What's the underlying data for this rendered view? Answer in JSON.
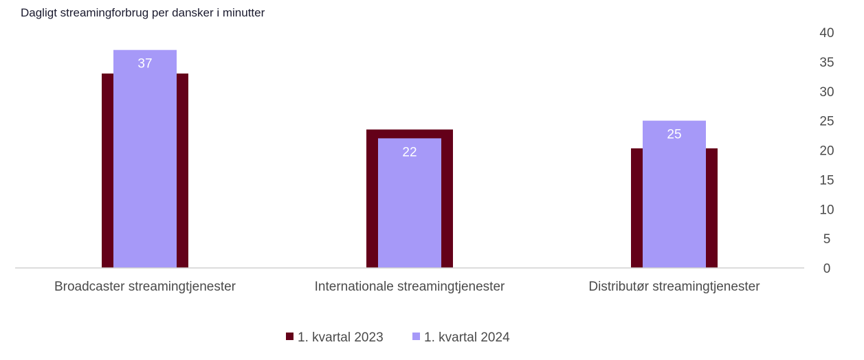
{
  "chart_data": {
    "type": "bar",
    "title": "Dagligt streamingforbrug per dansker i minutter",
    "categories": [
      "Broadcaster streamingtjenester",
      "Internationale streamingtjenester",
      "Distributør streamingtjenester"
    ],
    "series": [
      {
        "name": "1. kvartal 2023",
        "values": [
          33,
          23.5,
          20.3
        ],
        "color": "#640019"
      },
      {
        "name": "1. kvartal 2024",
        "values": [
          37,
          22,
          25
        ],
        "color": "#a699f8"
      }
    ],
    "data_labels": [
      "37",
      "22",
      "25"
    ],
    "yticks": [
      "0",
      "5",
      "10",
      "15",
      "20",
      "25",
      "30",
      "35",
      "40"
    ],
    "ylim": [
      0,
      40
    ],
    "yaxis_position": "right",
    "grid": false,
    "legend_position": "bottom"
  }
}
